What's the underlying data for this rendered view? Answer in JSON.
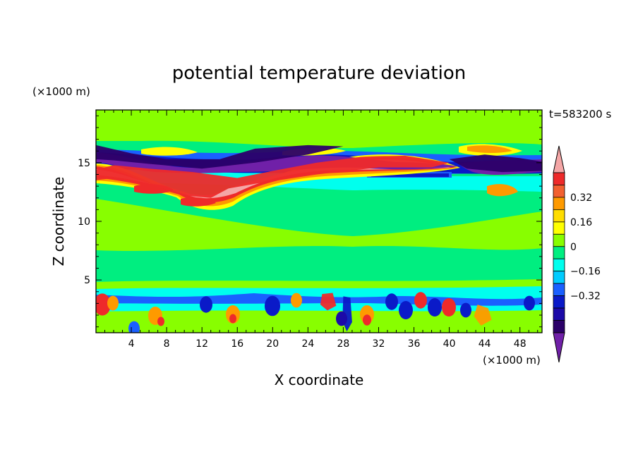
{
  "chart_data": {
    "type": "heatmap",
    "title": "potential temperature deviation",
    "xlabel": "X coordinate",
    "ylabel": "Z coordinate",
    "x_unit": "(×1000 m)",
    "y_unit": "(×1000 m)",
    "time_label": "t=583200 s",
    "xlim": [
      0,
      50.5
    ],
    "ylim": [
      0.5,
      19.5
    ],
    "x_ticks": [
      4,
      8,
      12,
      16,
      20,
      24,
      28,
      32,
      36,
      40,
      44,
      48
    ],
    "y_ticks": [
      5,
      10,
      15
    ],
    "colorbar": {
      "levels": [
        -0.48,
        -0.4,
        -0.32,
        -0.24,
        -0.16,
        -0.08,
        0,
        0.08,
        0.16,
        0.24,
        0.32,
        0.4,
        0.48
      ],
      "labeled_levels": [
        0.32,
        0.16,
        0,
        -0.16,
        -0.32
      ],
      "colors_top_to_bottom": [
        "#f4a6a6",
        "#ee2a2a",
        "#f26030",
        "#fe9a00",
        "#ffdd00",
        "#ffff00",
        "#88fe00",
        "#00ee80",
        "#00ffee",
        "#00ccff",
        "#1a60ff",
        "#0a1ac8",
        "#1c0aa8",
        "#2b0068",
        "#7020a8"
      ]
    },
    "field_regions": [
      {
        "value": 0.48,
        "desc": "warm band",
        "path": [
          [
            0.0,
            14.4
          ],
          [
            2.0,
            14.8
          ],
          [
            6.0,
            14.5
          ],
          [
            11.0,
            14.2
          ],
          [
            16.0,
            13.7
          ],
          [
            20.0,
            14.3
          ],
          [
            25.0,
            15.0
          ],
          [
            30.0,
            15.5
          ],
          [
            35.0,
            15.6
          ],
          [
            40.0,
            15.0
          ],
          [
            38.0,
            14.6
          ],
          [
            32.0,
            14.6
          ],
          [
            25.0,
            14.0
          ],
          [
            18.0,
            13.2
          ],
          [
            15.0,
            12.8
          ],
          [
            13.0,
            12.0
          ],
          [
            10.0,
            12.2
          ],
          [
            6.0,
            13.2
          ],
          [
            2.0,
            13.7
          ],
          [
            0.0,
            13.5
          ]
        ]
      },
      {
        "value": -0.48,
        "desc": "cold band",
        "path": [
          [
            0.0,
            16.5
          ],
          [
            4.0,
            15.8
          ],
          [
            8.0,
            15.3
          ],
          [
            14.0,
            15.3
          ],
          [
            18.0,
            16.2
          ],
          [
            24.0,
            16.5
          ],
          [
            28.0,
            16.4
          ],
          [
            24.0,
            15.7
          ],
          [
            18.0,
            15.0
          ],
          [
            12.0,
            14.5
          ],
          [
            6.0,
            14.9
          ],
          [
            2.0,
            15.2
          ],
          [
            0.0,
            15.3
          ]
        ]
      },
      {
        "value": -0.48,
        "desc": "cold cell",
        "path": [
          [
            40.0,
            15.3
          ],
          [
            44.0,
            15.7
          ],
          [
            48.0,
            15.4
          ],
          [
            50.5,
            15.1
          ],
          [
            50.5,
            14.3
          ],
          [
            46.0,
            14.2
          ],
          [
            42.0,
            14.5
          ]
        ]
      },
      {
        "value": 0.48,
        "desc": "warm cell",
        "path": [
          [
            25.6,
            3.8
          ],
          [
            26.8,
            3.9
          ],
          [
            27.2,
            2.8
          ],
          [
            26.2,
            2.4
          ],
          [
            25.4,
            2.9
          ]
        ]
      },
      {
        "value": -0.32,
        "desc": "cold column",
        "path": [
          [
            28.0,
            3.6
          ],
          [
            28.8,
            3.5
          ],
          [
            29.0,
            1.4
          ],
          [
            28.4,
            0.6
          ],
          [
            27.9,
            1.5
          ]
        ]
      },
      {
        "value": 0.32,
        "desc": "warm cell",
        "path": [
          [
            43.2,
            2.9
          ],
          [
            44.4,
            2.6
          ],
          [
            44.8,
            1.6
          ],
          [
            43.6,
            1.1
          ],
          [
            42.8,
            1.9
          ]
        ]
      }
    ]
  }
}
